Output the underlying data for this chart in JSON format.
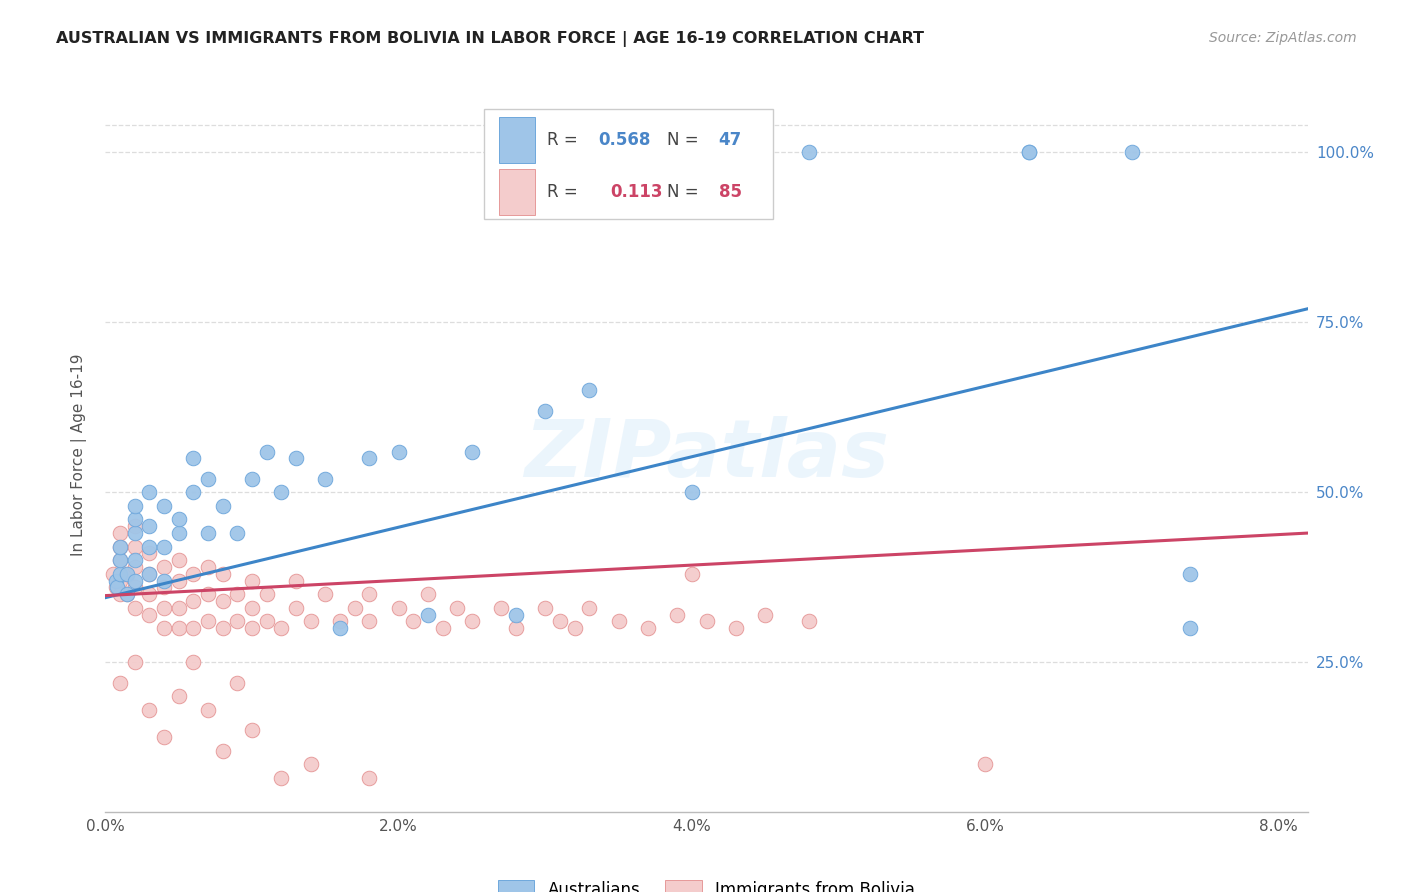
{
  "title": "AUSTRALIAN VS IMMIGRANTS FROM BOLIVIA IN LABOR FORCE | AGE 16-19 CORRELATION CHART",
  "source": "Source: ZipAtlas.com",
  "ylabel": "In Labor Force | Age 16-19",
  "ytick_labels": [
    "25.0%",
    "50.0%",
    "75.0%",
    "100.0%"
  ],
  "ytick_values": [
    0.25,
    0.5,
    0.75,
    1.0
  ],
  "xtick_labels": [
    "0.0%",
    "2.0%",
    "4.0%",
    "6.0%",
    "8.0%"
  ],
  "xtick_values": [
    0.0,
    0.02,
    0.04,
    0.06,
    0.08
  ],
  "xmin": 0.0,
  "xmax": 0.082,
  "ymin": 0.03,
  "ymax": 1.08,
  "r_aus": "0.568",
  "n_aus": "47",
  "r_bol": "0.113",
  "n_bol": "85",
  "color_blue_fill": "#9fc5e8",
  "color_blue_edge": "#6fa8dc",
  "color_blue_line": "#3d85c8",
  "color_blue_text": "#4a86c8",
  "color_pink_fill": "#f4cccc",
  "color_pink_edge": "#e69999",
  "color_pink_line": "#cc4466",
  "color_pink_text": "#cc4466",
  "watermark": "ZIPatlas",
  "legend_label_aus": "Australians",
  "legend_label_bol": "Immigrants from Bolivia",
  "aus_x": [
    0.0007,
    0.0008,
    0.001,
    0.001,
    0.001,
    0.0015,
    0.0015,
    0.002,
    0.002,
    0.002,
    0.002,
    0.002,
    0.003,
    0.003,
    0.003,
    0.003,
    0.004,
    0.004,
    0.004,
    0.005,
    0.005,
    0.006,
    0.006,
    0.007,
    0.007,
    0.008,
    0.009,
    0.01,
    0.011,
    0.012,
    0.013,
    0.015,
    0.016,
    0.018,
    0.02,
    0.022,
    0.025,
    0.028,
    0.03,
    0.033,
    0.04,
    0.048,
    0.063,
    0.063,
    0.07,
    0.074,
    0.074
  ],
  "aus_y": [
    0.37,
    0.36,
    0.38,
    0.4,
    0.42,
    0.35,
    0.38,
    0.37,
    0.4,
    0.44,
    0.46,
    0.48,
    0.38,
    0.42,
    0.45,
    0.5,
    0.37,
    0.42,
    0.48,
    0.44,
    0.46,
    0.5,
    0.55,
    0.44,
    0.52,
    0.48,
    0.44,
    0.52,
    0.56,
    0.5,
    0.55,
    0.52,
    0.3,
    0.55,
    0.56,
    0.32,
    0.56,
    0.32,
    0.62,
    0.65,
    0.5,
    1.0,
    1.0,
    1.0,
    1.0,
    0.3,
    0.38
  ],
  "bol_x": [
    0.0005,
    0.0007,
    0.001,
    0.001,
    0.001,
    0.001,
    0.001,
    0.0015,
    0.0015,
    0.002,
    0.002,
    0.002,
    0.002,
    0.002,
    0.003,
    0.003,
    0.003,
    0.003,
    0.004,
    0.004,
    0.004,
    0.004,
    0.005,
    0.005,
    0.005,
    0.005,
    0.006,
    0.006,
    0.006,
    0.007,
    0.007,
    0.007,
    0.008,
    0.008,
    0.008,
    0.009,
    0.009,
    0.01,
    0.01,
    0.01,
    0.011,
    0.011,
    0.012,
    0.013,
    0.013,
    0.014,
    0.015,
    0.016,
    0.017,
    0.018,
    0.018,
    0.02,
    0.021,
    0.022,
    0.023,
    0.024,
    0.025,
    0.027,
    0.028,
    0.03,
    0.031,
    0.032,
    0.033,
    0.035,
    0.037,
    0.039,
    0.041,
    0.043,
    0.045,
    0.048,
    0.001,
    0.002,
    0.003,
    0.004,
    0.005,
    0.006,
    0.007,
    0.008,
    0.009,
    0.01,
    0.012,
    0.014,
    0.018,
    0.04,
    0.06
  ],
  "bol_y": [
    0.38,
    0.36,
    0.37,
    0.35,
    0.4,
    0.42,
    0.44,
    0.35,
    0.38,
    0.33,
    0.36,
    0.39,
    0.42,
    0.45,
    0.32,
    0.35,
    0.38,
    0.41,
    0.3,
    0.33,
    0.36,
    0.39,
    0.3,
    0.33,
    0.37,
    0.4,
    0.3,
    0.34,
    0.38,
    0.31,
    0.35,
    0.39,
    0.3,
    0.34,
    0.38,
    0.31,
    0.35,
    0.3,
    0.33,
    0.37,
    0.31,
    0.35,
    0.3,
    0.33,
    0.37,
    0.31,
    0.35,
    0.31,
    0.33,
    0.31,
    0.35,
    0.33,
    0.31,
    0.35,
    0.3,
    0.33,
    0.31,
    0.33,
    0.3,
    0.33,
    0.31,
    0.3,
    0.33,
    0.31,
    0.3,
    0.32,
    0.31,
    0.3,
    0.32,
    0.31,
    0.22,
    0.25,
    0.18,
    0.14,
    0.2,
    0.25,
    0.18,
    0.12,
    0.22,
    0.15,
    0.08,
    0.1,
    0.08,
    0.38,
    0.1
  ],
  "blue_line_x0": 0.0,
  "blue_line_y0": 0.345,
  "blue_line_x1": 0.082,
  "blue_line_y1": 0.77,
  "pink_line_x0": 0.0,
  "pink_line_y0": 0.348,
  "pink_line_x1": 0.082,
  "pink_line_y1": 0.44
}
